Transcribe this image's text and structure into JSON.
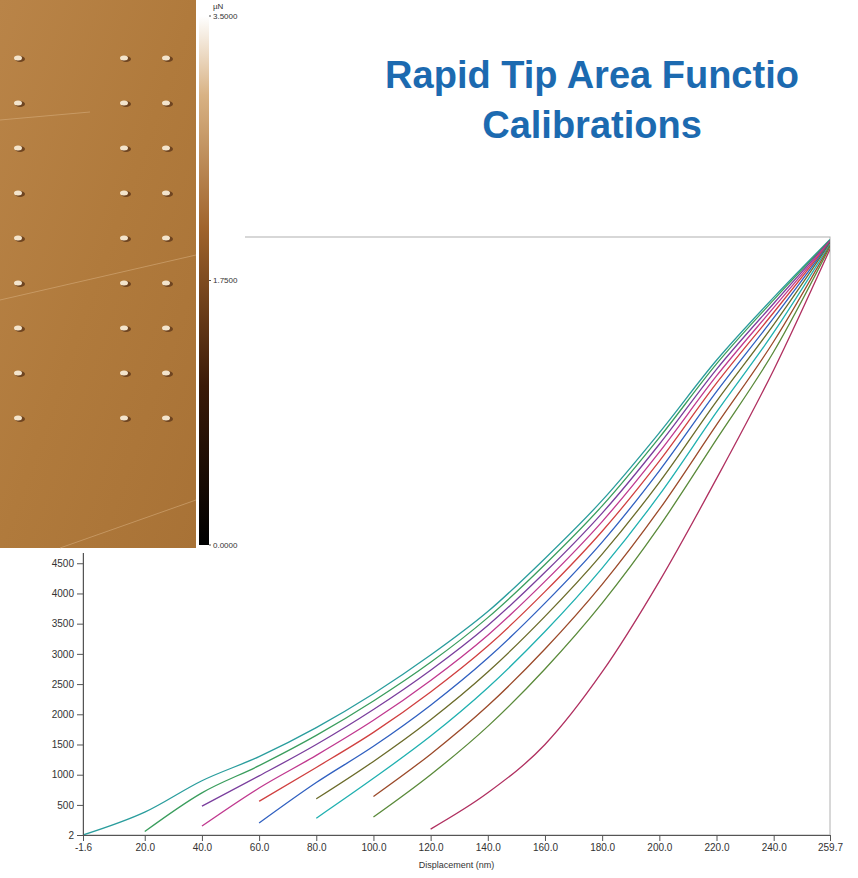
{
  "chart_data": {
    "type": "line",
    "title": "Rapid Tip Area Functio Calibrations",
    "x_label": "Displacement (nm)",
    "x": [
      -1.6,
      20,
      40,
      60,
      80,
      100,
      120,
      140,
      160,
      180,
      200,
      220,
      240,
      259.7
    ],
    "xlim": [
      -1.6,
      259.7
    ],
    "xticks": [
      -1.6,
      {
        "value": 20,
        "label": "20.0"
      },
      {
        "value": 40,
        "label": "40.0"
      },
      {
        "value": 60,
        "label": "60.0"
      },
      {
        "value": 80,
        "label": "80.0"
      },
      {
        "value": 100,
        "label": "100.0"
      },
      {
        "value": 120,
        "label": "120.0"
      },
      {
        "value": 140,
        "label": "140.0"
      },
      {
        "value": 160,
        "label": "160.0"
      },
      {
        "value": 180,
        "label": "180.0"
      },
      {
        "value": 200,
        "label": "200.0"
      },
      {
        "value": 220,
        "label": "220.0"
      },
      {
        "value": 240,
        "label": "240.0"
      },
      259.7
    ],
    "ylim": [
      2,
      9900
    ],
    "yticks": [
      2,
      500,
      1000,
      1500,
      2000,
      2500,
      3000,
      3500,
      4000,
      4500
    ],
    "series": [
      {
        "color": "#2a9d9d",
        "values": [
          2,
          380,
          900,
          1300,
          1780,
          2340,
          2980,
          3700,
          4580,
          5540,
          6660,
          7860,
          8900,
          9860
        ]
      },
      {
        "color": "#3a9d5d",
        "values": [
          null,
          60,
          700,
          1150,
          1650,
          2220,
          2860,
          3600,
          4480,
          5450,
          6580,
          7800,
          8860,
          9850
        ]
      },
      {
        "color": "#7a3e9d",
        "values": [
          null,
          null,
          480,
          980,
          1500,
          2080,
          2730,
          3470,
          4350,
          5330,
          6470,
          7710,
          8800,
          9840
        ]
      },
      {
        "color": "#c0398f",
        "values": [
          null,
          null,
          150,
          780,
          1320,
          1900,
          2560,
          3310,
          4200,
          5190,
          6340,
          7600,
          8730,
          9830
        ]
      },
      {
        "color": "#d04040",
        "values": [
          null,
          null,
          null,
          560,
          1120,
          1700,
          2370,
          3130,
          4030,
          5030,
          6190,
          7480,
          8650,
          9820
        ]
      },
      {
        "color": "#3060c0",
        "values": [
          null,
          null,
          null,
          200,
          870,
          1470,
          2150,
          2930,
          3840,
          4850,
          6030,
          7340,
          8560,
          9810
        ]
      },
      {
        "color": "#6b6b2a",
        "values": [
          null,
          null,
          null,
          null,
          600,
          1220,
          1910,
          2700,
          3620,
          4650,
          5840,
          7180,
          8450,
          9800
        ]
      },
      {
        "color": "#20b0b0",
        "values": [
          null,
          null,
          null,
          null,
          280,
          940,
          1640,
          2440,
          3370,
          4420,
          5630,
          7000,
          8320,
          9780
        ]
      },
      {
        "color": "#9b4a2a",
        "values": [
          null,
          null,
          null,
          null,
          null,
          640,
          1340,
          2140,
          3080,
          4150,
          5390,
          6790,
          8170,
          9760
        ]
      },
      {
        "color": "#5a8a3a",
        "values": [
          null,
          null,
          null,
          null,
          null,
          300,
          1000,
          1800,
          2750,
          3840,
          5110,
          6550,
          8000,
          9740
        ]
      },
      {
        "color": "#b03060",
        "values": [
          null,
          null,
          null,
          null,
          null,
          null,
          100,
          700,
          1500,
          2700,
          4200,
          5900,
          7700,
          9700
        ]
      }
    ],
    "colorbar": {
      "label": "µN",
      "range": [
        0,
        3.5
      ],
      "ticks": [
        {
          "value": 3.5,
          "label": "3.5000"
        },
        {
          "value": 1.75,
          "label": "1.7500"
        },
        {
          "value": 0,
          "label": "0.0000"
        }
      ]
    }
  }
}
